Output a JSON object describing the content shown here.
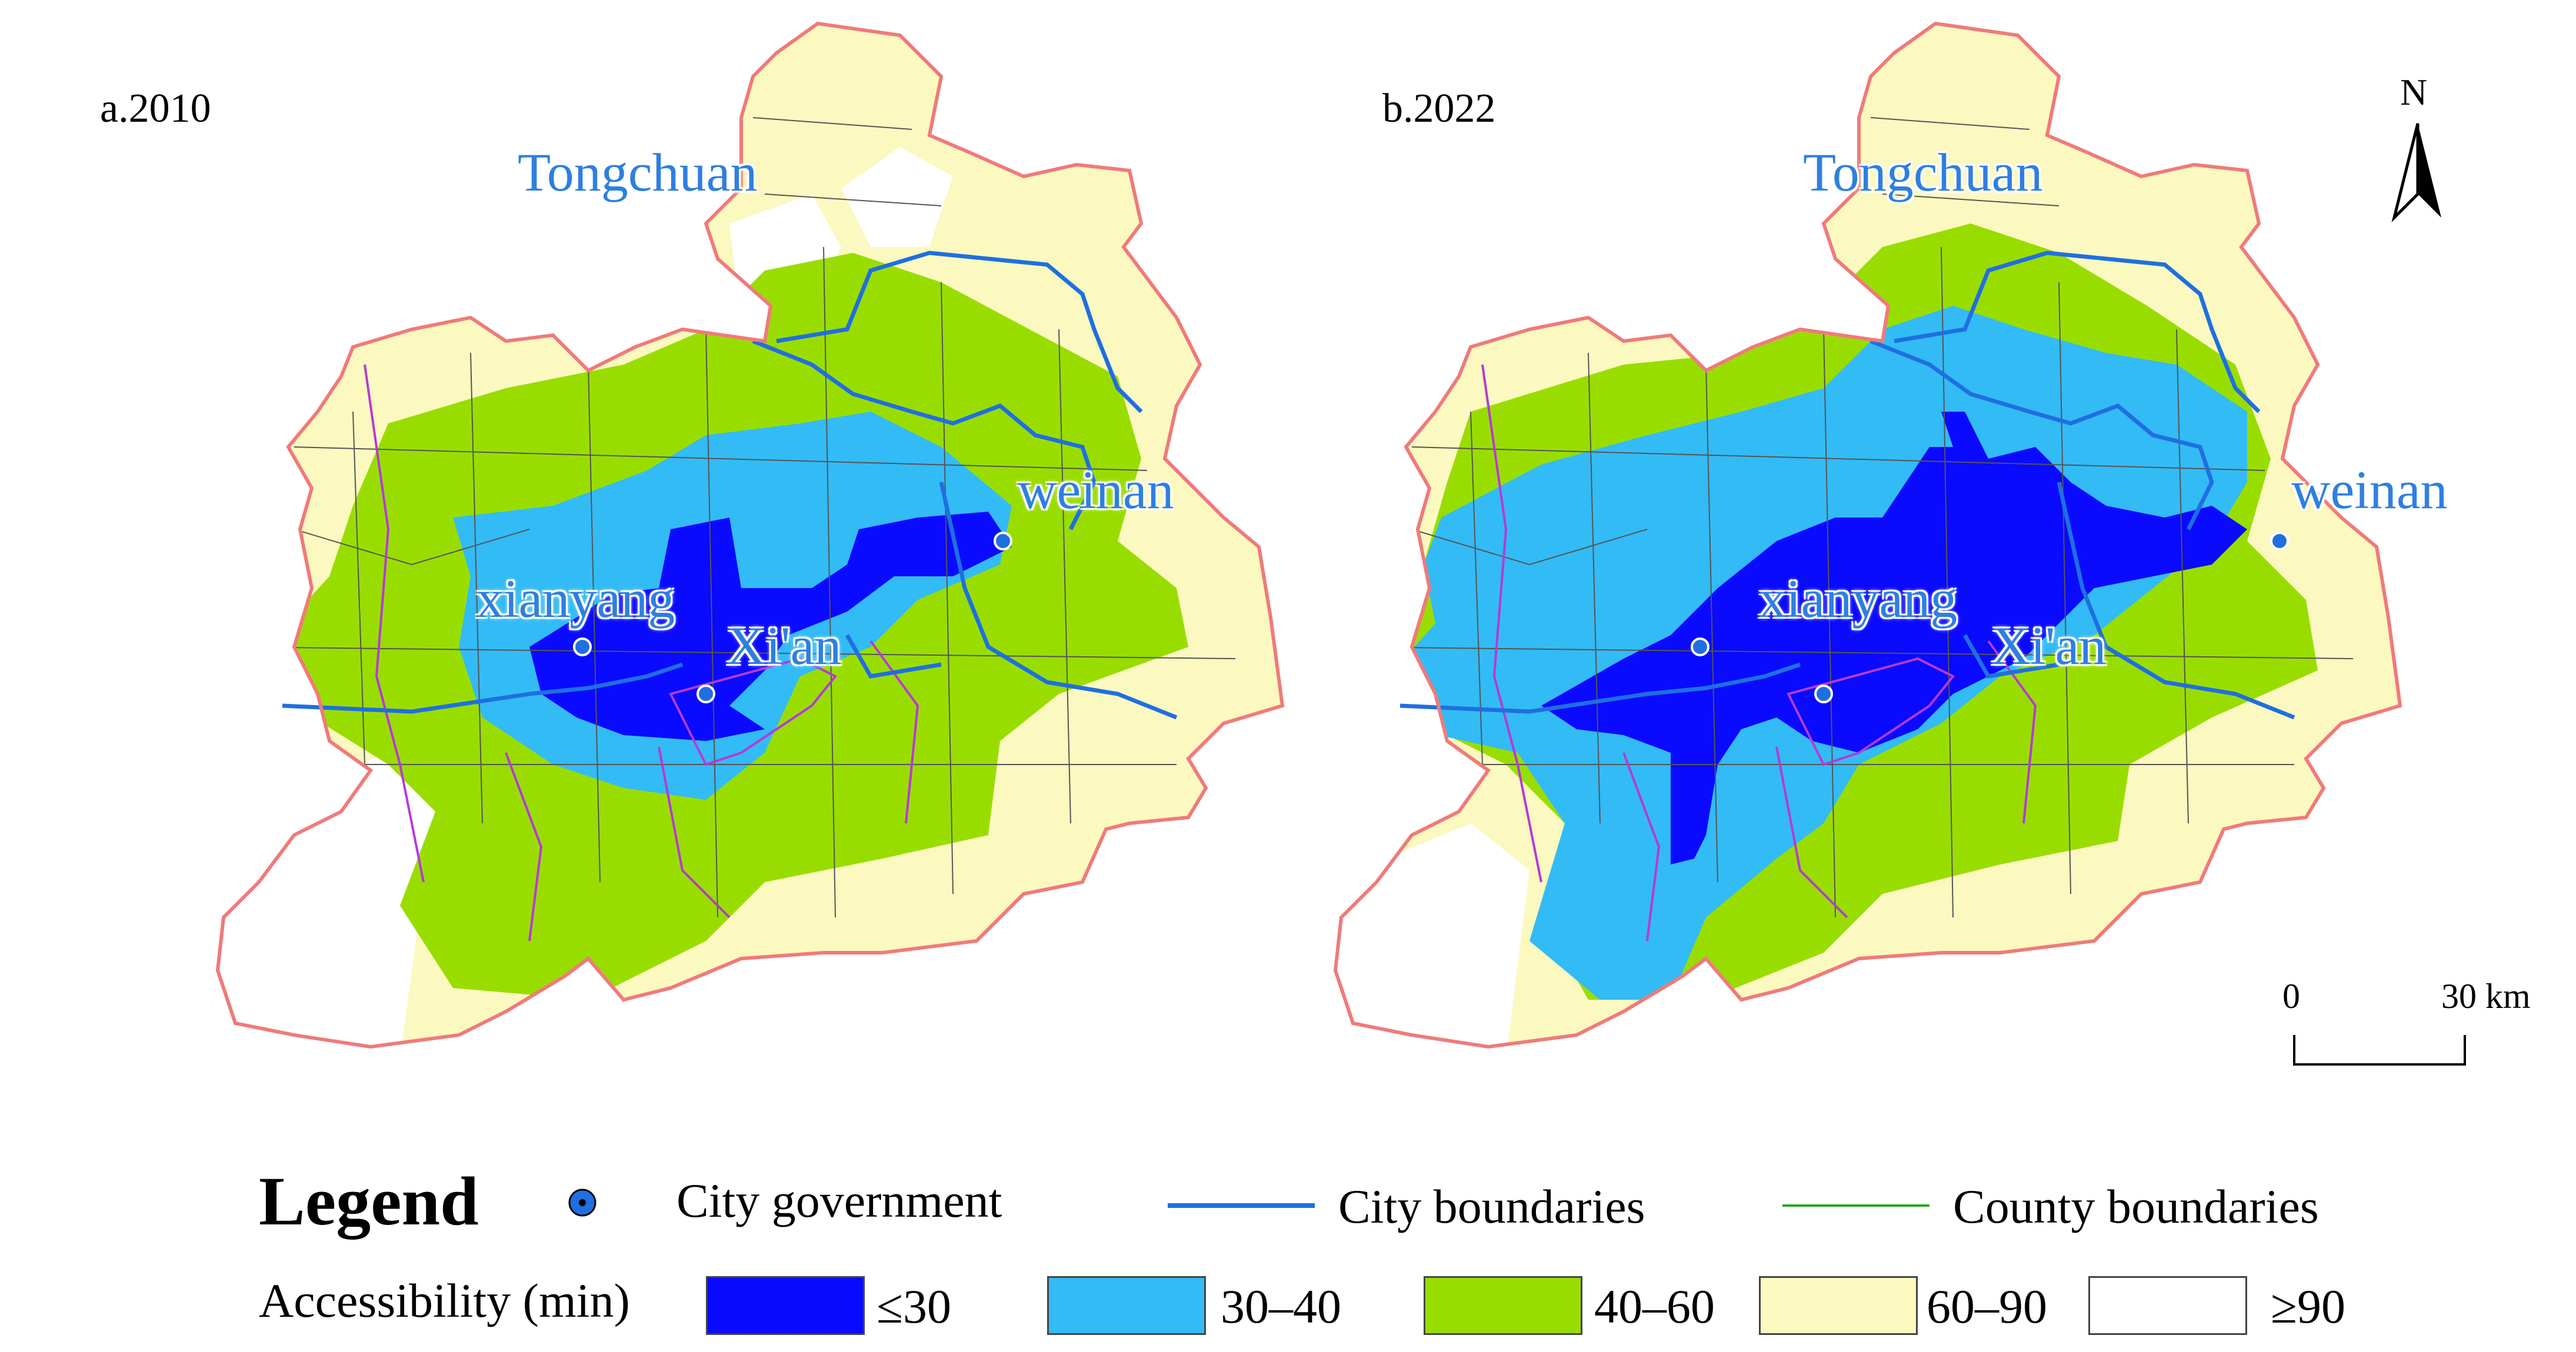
{
  "panels": [
    {
      "label": "a.2010"
    },
    {
      "label": "b.2022"
    }
  ],
  "cities": [
    "Tongchuan",
    "weinan",
    "xianyang",
    "Xi'an"
  ],
  "north_arrow": {
    "label": "N"
  },
  "scale_bar": {
    "start": "0",
    "end": "30 km"
  },
  "legend": {
    "title": "Legend",
    "city_government": "City government",
    "city_boundaries": "City boundaries",
    "county_boundaries": "County boundaries",
    "accessibility_title": "Accessibility (min)",
    "classes": [
      {
        "label": "≤30",
        "color": "#0a0aff"
      },
      {
        "label": "30–40",
        "color": "#33bbf5"
      },
      {
        "label": "40–60",
        "color": "#99dd00"
      },
      {
        "label": "60–90",
        "color": "#fbf8c0"
      },
      {
        "label": "≥90",
        "color": "#ffffff"
      }
    ]
  },
  "colors": {
    "region_outline": "#f07a7a",
    "city_boundary": "#1f6fe0",
    "county_boundary": "#b63ad6",
    "city_label": "#2e7fe0"
  }
}
